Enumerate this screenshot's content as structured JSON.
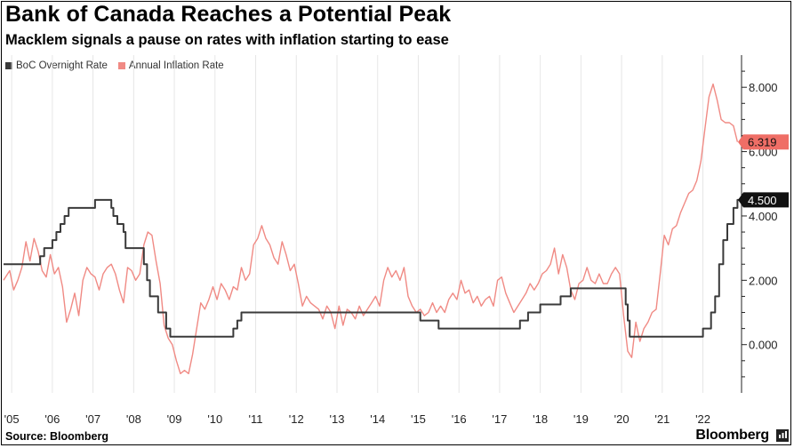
{
  "header": {
    "title": "Bank of Canada Reaches a Potential Peak",
    "subtitle": "Macklem signals a pause on rates with inflation starting to ease"
  },
  "footer": {
    "source": "Source: Bloomberg",
    "brand": "Bloomberg"
  },
  "chart_data": {
    "type": "line",
    "title": "Bank of Canada Reaches a Potential Peak",
    "subtitle": "Macklem signals a pause on rates with inflation starting to ease",
    "xlabel": "",
    "ylabel": "",
    "xlim": [
      2004.8,
      2022.95
    ],
    "ylim": [
      -1.5,
      9.0
    ],
    "y_ticks": [
      {
        "value": 0,
        "label": "0.000"
      },
      {
        "value": 2,
        "label": "2.000"
      },
      {
        "value": 4,
        "label": "4.000"
      },
      {
        "value": 6,
        "label": "6.000"
      },
      {
        "value": 8,
        "label": "8.000"
      }
    ],
    "x_ticks": [
      {
        "value": 2005,
        "label": "'05"
      },
      {
        "value": 2006,
        "label": "'06"
      },
      {
        "value": 2007,
        "label": "'07"
      },
      {
        "value": 2008,
        "label": "'08"
      },
      {
        "value": 2009,
        "label": "'09"
      },
      {
        "value": 2010,
        "label": "'10"
      },
      {
        "value": 2011,
        "label": "'11"
      },
      {
        "value": 2012,
        "label": "'12"
      },
      {
        "value": 2013,
        "label": "'13"
      },
      {
        "value": 2014,
        "label": "'14"
      },
      {
        "value": 2015,
        "label": "'15"
      },
      {
        "value": 2016,
        "label": "'16"
      },
      {
        "value": 2017,
        "label": "'17"
      },
      {
        "value": 2018,
        "label": "'18"
      },
      {
        "value": 2019,
        "label": "'19"
      },
      {
        "value": 2020,
        "label": "'20"
      },
      {
        "value": 2021,
        "label": "'21"
      },
      {
        "value": 2022,
        "label": "'22"
      }
    ],
    "grid": "vertical",
    "legend_position": "top-left",
    "series": [
      {
        "name": "BoC Overnight Rate",
        "color": "#3a3a3a",
        "step": true,
        "last_value_label": "4.500",
        "points": [
          [
            2004.8,
            2.5
          ],
          [
            2005.7,
            2.75
          ],
          [
            2005.8,
            3.0
          ],
          [
            2006.0,
            3.25
          ],
          [
            2006.1,
            3.5
          ],
          [
            2006.2,
            3.75
          ],
          [
            2006.3,
            4.0
          ],
          [
            2006.4,
            4.25
          ],
          [
            2007.0,
            4.25
          ],
          [
            2007.05,
            4.5
          ],
          [
            2007.4,
            4.5
          ],
          [
            2007.45,
            4.25
          ],
          [
            2007.5,
            4.0
          ],
          [
            2007.6,
            3.75
          ],
          [
            2007.75,
            3.5
          ],
          [
            2007.8,
            3.0
          ],
          [
            2008.2,
            3.0
          ],
          [
            2008.25,
            2.5
          ],
          [
            2008.33,
            2.0
          ],
          [
            2008.4,
            1.5
          ],
          [
            2008.6,
            1.0
          ],
          [
            2008.8,
            0.5
          ],
          [
            2008.9,
            0.25
          ],
          [
            2010.4,
            0.25
          ],
          [
            2010.45,
            0.5
          ],
          [
            2010.55,
            0.75
          ],
          [
            2010.65,
            1.0
          ],
          [
            2014.9,
            1.0
          ],
          [
            2015.05,
            0.75
          ],
          [
            2015.5,
            0.5
          ],
          [
            2017.4,
            0.5
          ],
          [
            2017.5,
            0.75
          ],
          [
            2017.7,
            1.0
          ],
          [
            2018.0,
            1.25
          ],
          [
            2018.5,
            1.5
          ],
          [
            2018.75,
            1.75
          ],
          [
            2019.95,
            1.75
          ],
          [
            2020.1,
            1.25
          ],
          [
            2020.15,
            0.75
          ],
          [
            2020.2,
            0.25
          ],
          [
            2021.9,
            0.25
          ],
          [
            2022.0,
            0.5
          ],
          [
            2022.2,
            1.0
          ],
          [
            2022.3,
            1.5
          ],
          [
            2022.4,
            2.5
          ],
          [
            2022.5,
            3.25
          ],
          [
            2022.6,
            3.75
          ],
          [
            2022.75,
            4.25
          ],
          [
            2022.85,
            4.5
          ],
          [
            2022.9,
            4.5
          ]
        ]
      },
      {
        "name": "Annual Inflation Rate",
        "color": "#f08a84",
        "step": false,
        "last_value_label": "6.319",
        "points": [
          [
            2004.8,
            2.0
          ],
          [
            2004.95,
            2.3
          ],
          [
            2005.05,
            1.7
          ],
          [
            2005.15,
            2.0
          ],
          [
            2005.25,
            2.4
          ],
          [
            2005.35,
            3.2
          ],
          [
            2005.45,
            2.6
          ],
          [
            2005.55,
            3.3
          ],
          [
            2005.65,
            2.9
          ],
          [
            2005.75,
            2.3
          ],
          [
            2005.85,
            2.1
          ],
          [
            2005.95,
            2.8
          ],
          [
            2006.05,
            2.2
          ],
          [
            2006.15,
            2.4
          ],
          [
            2006.25,
            1.8
          ],
          [
            2006.35,
            0.7
          ],
          [
            2006.45,
            1.1
          ],
          [
            2006.55,
            1.6
          ],
          [
            2006.65,
            0.9
          ],
          [
            2006.75,
            2.0
          ],
          [
            2006.85,
            2.4
          ],
          [
            2006.95,
            2.2
          ],
          [
            2007.05,
            2.1
          ],
          [
            2007.15,
            1.7
          ],
          [
            2007.25,
            2.2
          ],
          [
            2007.35,
            2.4
          ],
          [
            2007.45,
            2.5
          ],
          [
            2007.55,
            2.2
          ],
          [
            2007.65,
            1.7
          ],
          [
            2007.75,
            1.3
          ],
          [
            2007.85,
            2.4
          ],
          [
            2007.95,
            2.3
          ],
          [
            2008.05,
            2.0
          ],
          [
            2008.15,
            2.2
          ],
          [
            2008.25,
            3.1
          ],
          [
            2008.35,
            3.5
          ],
          [
            2008.45,
            3.4
          ],
          [
            2008.55,
            2.6
          ],
          [
            2008.65,
            1.9
          ],
          [
            2008.75,
            0.6
          ],
          [
            2008.85,
            0.2
          ],
          [
            2008.95,
            0.0
          ],
          [
            2009.05,
            -0.5
          ],
          [
            2009.15,
            -0.9
          ],
          [
            2009.25,
            -0.8
          ],
          [
            2009.35,
            -0.9
          ],
          [
            2009.45,
            -0.3
          ],
          [
            2009.55,
            0.5
          ],
          [
            2009.65,
            1.3
          ],
          [
            2009.75,
            1.1
          ],
          [
            2009.85,
            1.4
          ],
          [
            2009.95,
            1.8
          ],
          [
            2010.05,
            1.4
          ],
          [
            2010.15,
            1.9
          ],
          [
            2010.25,
            1.7
          ],
          [
            2010.35,
            1.4
          ],
          [
            2010.45,
            1.8
          ],
          [
            2010.55,
            1.7
          ],
          [
            2010.65,
            2.4
          ],
          [
            2010.75,
            2.0
          ],
          [
            2010.85,
            2.2
          ],
          [
            2010.95,
            3.1
          ],
          [
            2011.05,
            3.3
          ],
          [
            2011.15,
            3.7
          ],
          [
            2011.25,
            3.3
          ],
          [
            2011.35,
            3.1
          ],
          [
            2011.45,
            2.7
          ],
          [
            2011.55,
            2.5
          ],
          [
            2011.65,
            3.2
          ],
          [
            2011.75,
            2.8
          ],
          [
            2011.85,
            2.3
          ],
          [
            2011.95,
            2.5
          ],
          [
            2012.05,
            1.9
          ],
          [
            2012.15,
            1.2
          ],
          [
            2012.25,
            1.5
          ],
          [
            2012.35,
            1.3
          ],
          [
            2012.45,
            1.2
          ],
          [
            2012.55,
            1.1
          ],
          [
            2012.65,
            0.8
          ],
          [
            2012.75,
            1.2
          ],
          [
            2012.85,
            1.0
          ],
          [
            2012.95,
            0.5
          ],
          [
            2013.05,
            1.2
          ],
          [
            2013.15,
            0.6
          ],
          [
            2013.25,
            1.1
          ],
          [
            2013.35,
            1.0
          ],
          [
            2013.45,
            0.8
          ],
          [
            2013.55,
            1.2
          ],
          [
            2013.65,
            0.9
          ],
          [
            2013.75,
            1.1
          ],
          [
            2013.85,
            1.3
          ],
          [
            2013.95,
            1.5
          ],
          [
            2014.05,
            1.2
          ],
          [
            2014.15,
            2.0
          ],
          [
            2014.25,
            2.4
          ],
          [
            2014.35,
            2.1
          ],
          [
            2014.45,
            2.3
          ],
          [
            2014.55,
            2.0
          ],
          [
            2014.65,
            2.4
          ],
          [
            2014.75,
            1.5
          ],
          [
            2014.85,
            1.2
          ],
          [
            2014.95,
            1.0
          ],
          [
            2015.05,
            1.1
          ],
          [
            2015.15,
            0.9
          ],
          [
            2015.25,
            1.0
          ],
          [
            2015.35,
            1.3
          ],
          [
            2015.45,
            1.0
          ],
          [
            2015.55,
            1.2
          ],
          [
            2015.65,
            1.0
          ],
          [
            2015.75,
            1.4
          ],
          [
            2015.85,
            1.6
          ],
          [
            2015.95,
            1.4
          ],
          [
            2016.05,
            2.0
          ],
          [
            2016.15,
            1.6
          ],
          [
            2016.25,
            1.7
          ],
          [
            2016.35,
            1.3
          ],
          [
            2016.45,
            1.5
          ],
          [
            2016.55,
            1.2
          ],
          [
            2016.65,
            1.4
          ],
          [
            2016.75,
            1.5
          ],
          [
            2016.85,
            1.2
          ],
          [
            2016.95,
            2.0
          ],
          [
            2017.05,
            2.1
          ],
          [
            2017.15,
            1.6
          ],
          [
            2017.25,
            1.3
          ],
          [
            2017.35,
            1.0
          ],
          [
            2017.45,
            1.2
          ],
          [
            2017.55,
            1.4
          ],
          [
            2017.65,
            1.6
          ],
          [
            2017.75,
            1.9
          ],
          [
            2017.85,
            1.7
          ],
          [
            2017.95,
            1.9
          ],
          [
            2018.05,
            2.2
          ],
          [
            2018.15,
            2.3
          ],
          [
            2018.25,
            2.5
          ],
          [
            2018.35,
            3.0
          ],
          [
            2018.45,
            2.2
          ],
          [
            2018.55,
            2.8
          ],
          [
            2018.65,
            2.4
          ],
          [
            2018.75,
            1.7
          ],
          [
            2018.85,
            1.4
          ],
          [
            2018.95,
            1.9
          ],
          [
            2019.05,
            2.0
          ],
          [
            2019.15,
            2.4
          ],
          [
            2019.25,
            2.0
          ],
          [
            2019.35,
            1.9
          ],
          [
            2019.45,
            2.2
          ],
          [
            2019.55,
            1.9
          ],
          [
            2019.65,
            1.9
          ],
          [
            2019.75,
            2.2
          ],
          [
            2019.85,
            2.4
          ],
          [
            2019.95,
            2.2
          ],
          [
            2020.05,
            0.9
          ],
          [
            2020.15,
            -0.2
          ],
          [
            2020.25,
            -0.4
          ],
          [
            2020.35,
            0.7
          ],
          [
            2020.45,
            0.1
          ],
          [
            2020.55,
            0.5
          ],
          [
            2020.65,
            0.7
          ],
          [
            2020.75,
            1.0
          ],
          [
            2020.85,
            1.1
          ],
          [
            2020.95,
            2.2
          ],
          [
            2021.05,
            3.4
          ],
          [
            2021.15,
            3.1
          ],
          [
            2021.25,
            3.6
          ],
          [
            2021.35,
            3.7
          ],
          [
            2021.45,
            4.1
          ],
          [
            2021.55,
            4.4
          ],
          [
            2021.65,
            4.7
          ],
          [
            2021.75,
            4.8
          ],
          [
            2021.85,
            5.1
          ],
          [
            2021.95,
            5.7
          ],
          [
            2022.05,
            6.7
          ],
          [
            2022.15,
            7.7
          ],
          [
            2022.25,
            8.1
          ],
          [
            2022.35,
            7.6
          ],
          [
            2022.45,
            7.0
          ],
          [
            2022.55,
            6.9
          ],
          [
            2022.65,
            6.9
          ],
          [
            2022.75,
            6.8
          ],
          [
            2022.85,
            6.3
          ]
        ]
      }
    ]
  }
}
